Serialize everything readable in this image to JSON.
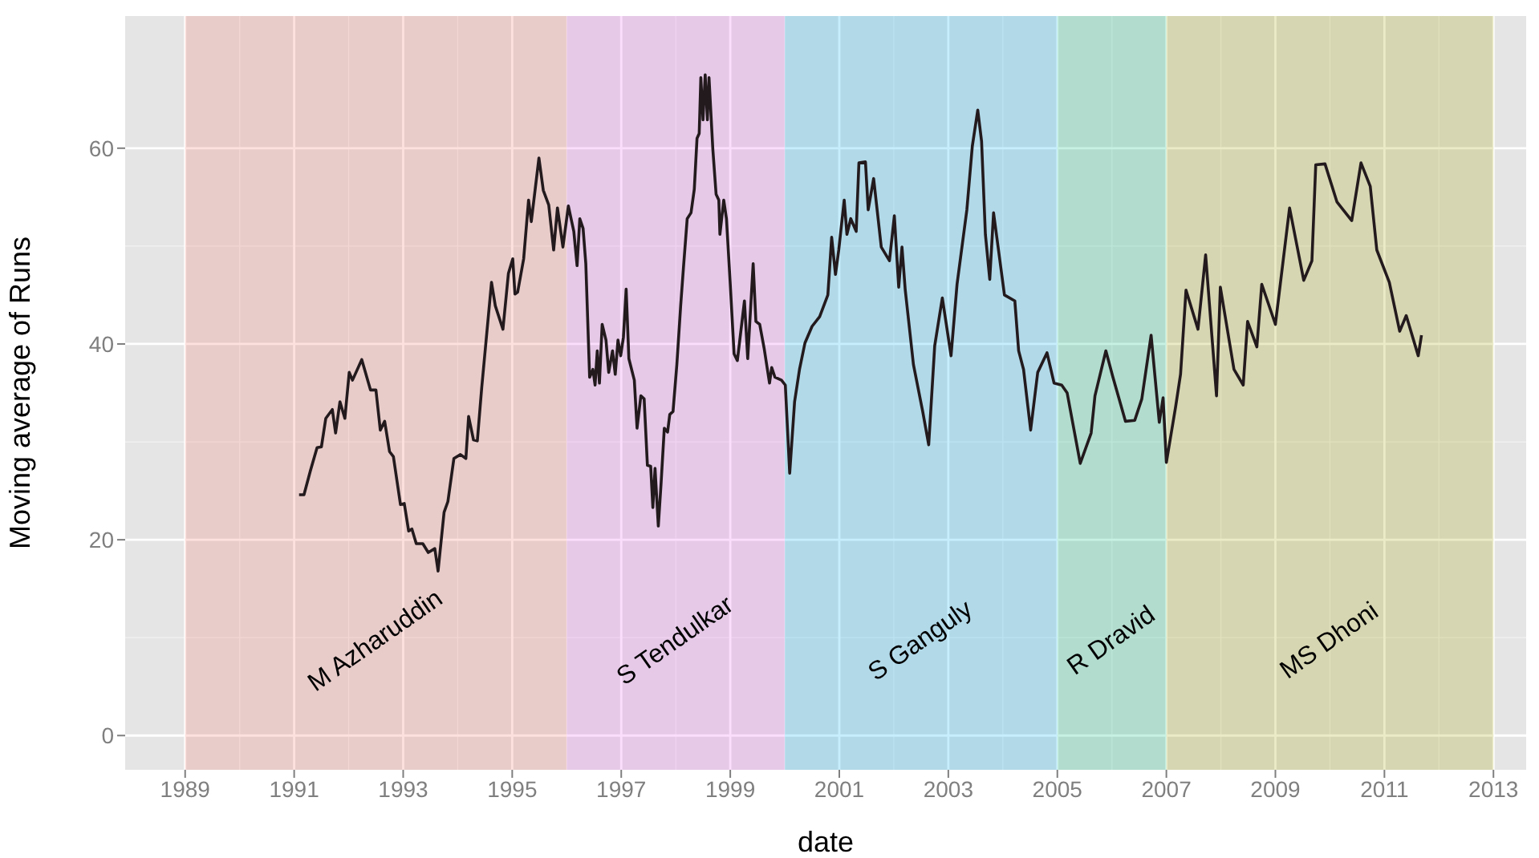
{
  "chart_data": {
    "type": "line",
    "xlabel": "date",
    "ylabel": "Moving average of Runs",
    "x": [
      1991.09,
      1991.18,
      1991.3,
      1991.42,
      1991.5,
      1991.58,
      1991.7,
      1991.76,
      1991.84,
      1991.93,
      1992.01,
      1992.07,
      1992.24,
      1992.4,
      1992.5,
      1992.58,
      1992.66,
      1992.75,
      1992.82,
      1992.95,
      1993.02,
      1993.1,
      1993.16,
      1993.24,
      1993.36,
      1993.46,
      1993.58,
      1993.64,
      1993.75,
      1993.82,
      1993.93,
      1994.05,
      1994.15,
      1994.2,
      1994.29,
      1994.36,
      1994.44,
      1994.54,
      1994.62,
      1994.69,
      1994.83,
      1994.93,
      1995.01,
      1995.05,
      1995.1,
      1995.21,
      1995.3,
      1995.35,
      1995.49,
      1995.57,
      1995.67,
      1995.76,
      1995.83,
      1995.93,
      1996.03,
      1996.13,
      1996.19,
      1996.24,
      1996.3,
      1996.35,
      1996.42,
      1996.48,
      1996.52,
      1996.56,
      1996.6,
      1996.65,
      1996.72,
      1996.77,
      1996.84,
      1996.89,
      1996.94,
      1996.99,
      1997.04,
      1997.09,
      1997.14,
      1997.24,
      1997.29,
      1997.36,
      1997.42,
      1997.48,
      1997.54,
      1997.58,
      1997.62,
      1997.68,
      1997.73,
      1997.79,
      1997.85,
      1997.89,
      1997.95,
      1998.02,
      1998.09,
      1998.14,
      1998.21,
      1998.28,
      1998.34,
      1998.39,
      1998.43,
      1998.46,
      1998.5,
      1998.54,
      1998.58,
      1998.61,
      1998.68,
      1998.74,
      1998.79,
      1998.81,
      1998.88,
      1998.93,
      1999.0,
      1999.07,
      1999.13,
      1999.26,
      1999.32,
      1999.42,
      1999.47,
      1999.54,
      1999.62,
      1999.72,
      1999.76,
      1999.82,
      1999.94,
      2000.01,
      2000.09,
      2000.18,
      2000.27,
      2000.37,
      2000.5,
      2000.64,
      2000.79,
      2000.86,
      2000.93,
      2000.99,
      2001.09,
      2001.14,
      2001.21,
      2001.31,
      2001.36,
      2001.48,
      2001.53,
      2001.63,
      2001.77,
      2001.92,
      2002.01,
      2002.09,
      2002.15,
      2002.21,
      2002.36,
      2002.53,
      2002.64,
      2002.75,
      2002.89,
      2003.05,
      2003.16,
      2003.34,
      2003.44,
      2003.54,
      2003.61,
      2003.68,
      2003.76,
      2003.83,
      2004.03,
      2004.22,
      2004.29,
      2004.38,
      2004.51,
      2004.64,
      2004.81,
      2004.94,
      2005.08,
      2005.18,
      2005.42,
      2005.62,
      2005.69,
      2005.89,
      2006.02,
      2006.25,
      2006.42,
      2006.55,
      2006.72,
      2006.87,
      2006.94,
      2007.0,
      2007.17,
      2007.26,
      2007.36,
      2007.58,
      2007.72,
      2007.92,
      2007.99,
      2008.24,
      2008.41,
      2008.49,
      2008.66,
      2008.75,
      2009.0,
      2009.26,
      2009.52,
      2009.67,
      2009.74,
      2009.91,
      2010.13,
      2010.4,
      2010.57,
      2010.74,
      2010.86,
      2011.09,
      2011.28,
      2011.4,
      2011.62,
      2011.68
    ],
    "series": [
      {
        "color": "#231a1e",
        "values": [
          24.6,
          24.6,
          27.1,
          29.4,
          29.5,
          32.4,
          33.3,
          30.9,
          34.1,
          32.4,
          37.1,
          36.3,
          38.4,
          35.3,
          35.3,
          31.2,
          32.1,
          29.0,
          28.5,
          23.6,
          23.7,
          20.9,
          21.1,
          19.6,
          19.6,
          18.7,
          19.1,
          16.8,
          22.8,
          23.9,
          28.3,
          28.7,
          28.3,
          32.6,
          30.2,
          30.1,
          35.5,
          41.5,
          46.3,
          43.9,
          41.5,
          47.2,
          48.7,
          45.1,
          45.3,
          48.7,
          54.7,
          52.5,
          59.0,
          55.7,
          54.2,
          49.6,
          53.9,
          49.9,
          54.1,
          51.5,
          48.0,
          52.8,
          51.8,
          48.2,
          36.6,
          37.4,
          35.8,
          39.3,
          36.0,
          42.0,
          40.4,
          37.1,
          39.3,
          36.9,
          40.4,
          38.8,
          40.7,
          45.6,
          38.5,
          36.3,
          31.4,
          34.7,
          34.4,
          27.6,
          27.5,
          23.3,
          27.3,
          21.4,
          25.7,
          31.4,
          31.0,
          32.8,
          33.1,
          37.9,
          43.9,
          47.7,
          52.8,
          53.4,
          55.8,
          61.0,
          61.5,
          67.2,
          62.9,
          67.5,
          62.9,
          67.2,
          59.9,
          55.3,
          54.7,
          51.2,
          54.7,
          52.8,
          46.1,
          39.0,
          38.3,
          44.4,
          38.5,
          48.2,
          42.3,
          42.0,
          39.6,
          36.0,
          37.6,
          36.6,
          36.3,
          35.8,
          26.8,
          34.1,
          37.4,
          40.1,
          41.8,
          42.8,
          45.0,
          50.9,
          47.1,
          49.6,
          54.7,
          51.2,
          52.8,
          51.5,
          58.5,
          58.6,
          53.7,
          56.9,
          49.9,
          48.5,
          53.1,
          45.8,
          49.9,
          45.5,
          37.9,
          33.1,
          29.7,
          39.8,
          44.7,
          38.8,
          46.1,
          53.7,
          60.2,
          63.9,
          60.7,
          51.2,
          46.6,
          53.4,
          45.0,
          44.4,
          39.3,
          37.4,
          31.2,
          37.1,
          39.1,
          36.0,
          35.8,
          35.0,
          27.8,
          30.9,
          34.7,
          39.3,
          36.6,
          32.1,
          32.2,
          34.4,
          40.9,
          32.0,
          34.5,
          27.9,
          33.6,
          36.9,
          45.5,
          41.5,
          49.1,
          34.7,
          45.8,
          37.4,
          35.8,
          42.3,
          39.7,
          46.1,
          42.0,
          53.9,
          46.5,
          48.5,
          58.3,
          58.4,
          54.5,
          52.6,
          58.5,
          56.1,
          49.6,
          46.3,
          41.3,
          42.9,
          38.8,
          40.9
        ]
      }
    ],
    "xlim": [
      1987.9,
      2013.6
    ],
    "xticks": [
      1989,
      1991,
      1993,
      1995,
      1997,
      1999,
      2001,
      2003,
      2005,
      2007,
      2009,
      2011,
      2013
    ],
    "ylim": [
      -3.5,
      73.5
    ],
    "yticks": [
      0,
      20,
      40,
      60
    ],
    "grid": true,
    "bands": [
      {
        "axis": "x",
        "from": 1989,
        "to": 1996,
        "label": "M Azharuddin",
        "color": "#f8766d"
      },
      {
        "axis": "x",
        "from": 1996,
        "to": 2000,
        "label": "S Tendulkar",
        "color": "#e76bf3"
      },
      {
        "axis": "x",
        "from": 2000,
        "to": 2005,
        "label": "S Ganguly",
        "color": "#00b0f6"
      },
      {
        "axis": "x",
        "from": 2005,
        "to": 2007,
        "label": "R Dravid",
        "color": "#00bf7d"
      },
      {
        "axis": "x",
        "from": 2007,
        "to": 2013,
        "label": "MS Dhoni",
        "color": "#a3a500"
      }
    ]
  }
}
